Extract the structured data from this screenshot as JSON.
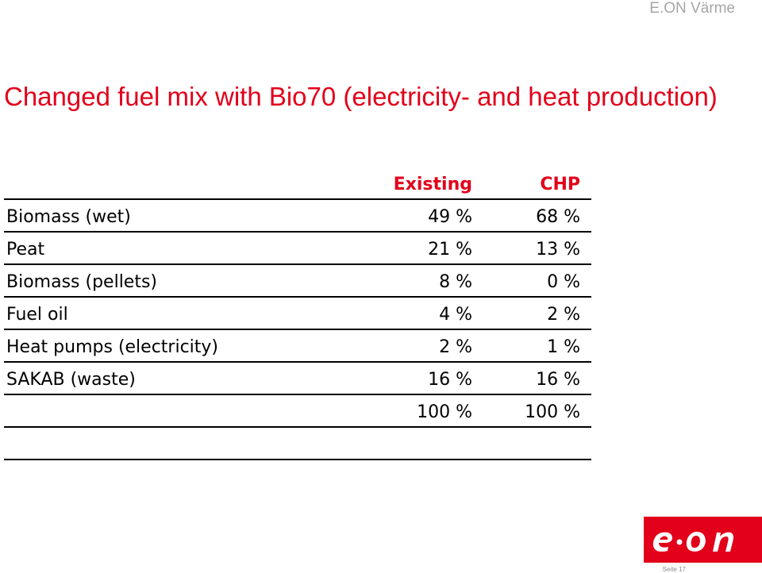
{
  "header": {
    "brand": "E.ON Värme"
  },
  "title": "Changed fuel mix with Bio70 (electricity- and heat production)",
  "table": {
    "columns": [
      "",
      "Existing",
      "CHP"
    ],
    "rows": [
      {
        "label": "Biomass (wet)",
        "existing": "49 %",
        "chp": "68 %"
      },
      {
        "label": "Peat",
        "existing": "21 %",
        "chp": "13 %"
      },
      {
        "label": "Biomass (pellets)",
        "existing": "8 %",
        "chp": "0 %"
      },
      {
        "label": "Fuel oil",
        "existing": "4 %",
        "chp": "2 %"
      },
      {
        "label": "Heat pumps (electricity)",
        "existing": "2 %",
        "chp": "1 %"
      },
      {
        "label": "SAKAB (waste)",
        "existing": "16 %",
        "chp": "16 %"
      },
      {
        "label": "",
        "existing": "100 %",
        "chp": "100 %"
      },
      {
        "label": "",
        "existing": "",
        "chp": ""
      }
    ]
  },
  "logo": {
    "text": "e·on",
    "color": "#e2001a"
  },
  "footer": {
    "page": "Seite 17"
  }
}
